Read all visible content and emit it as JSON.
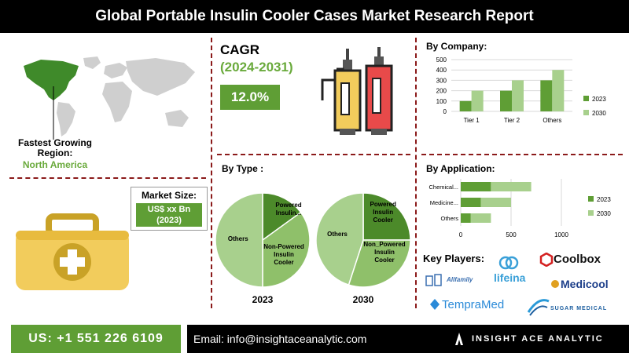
{
  "header": {
    "title": "Global Portable Insulin Cooler Cases Market Research Report"
  },
  "region": {
    "title": "Fastest Growing Region:",
    "value": "North America"
  },
  "market_size": {
    "title": "Market Size:",
    "value_line1": "US$ xx Bn",
    "value_line2": "(2023)"
  },
  "cagr": {
    "title": "CAGR",
    "period": "(2024-2031)",
    "value": "12.0%"
  },
  "by_type": {
    "title": "By Type :"
  },
  "by_company": {
    "title": "By Company:"
  },
  "by_application": {
    "title": "By Application:"
  },
  "key_players": {
    "title": "Key Players:",
    "logos": [
      "lifeina",
      "Coolbox",
      "Allfamily",
      "Medicool",
      "TempraMed",
      "SUGAR MEDICAL"
    ]
  },
  "footer": {
    "phone": "US: +1 551 226 6109",
    "email": "Email: info@insightaceanalytic.com",
    "brand": "INSIGHT ACE ANALYTIC"
  },
  "colors": {
    "dark_green": "#5f9e35",
    "mid_green": "#6aaa3c",
    "light_green": "#a8d08d",
    "pie_dark": "#4c8a2a",
    "pie_light": "#8fc06a"
  },
  "chart_data": [
    {
      "type": "pie",
      "title": "2023",
      "slices": [
        {
          "label": "Powered Insulin...",
          "value": 15
        },
        {
          "label": "Non-Powered Insulin Cooler",
          "value": 35
        },
        {
          "label": "Others",
          "value": 50
        }
      ]
    },
    {
      "type": "pie",
      "title": "2030",
      "slices": [
        {
          "label": "Powered Insulin Cooler",
          "value": 25
        },
        {
          "label": "Non_Powered Insulin Cooler",
          "value": 30
        },
        {
          "label": "Others",
          "value": 45
        }
      ]
    },
    {
      "type": "bar",
      "categories": [
        "Tier 1",
        "Tier 2",
        "Others"
      ],
      "series": [
        {
          "name": "2023",
          "values": [
            100,
            200,
            300
          ]
        },
        {
          "name": "2030",
          "values": [
            200,
            300,
            400
          ]
        }
      ],
      "ylim": [
        0,
        500
      ],
      "yticks": [
        0,
        100,
        200,
        300,
        400,
        500
      ],
      "legend": "right"
    },
    {
      "type": "bar",
      "orientation": "horizontal",
      "categories": [
        "Chemical...",
        "Medicine...",
        "Others"
      ],
      "series": [
        {
          "name": "2023",
          "values": [
            300,
            200,
            100
          ]
        },
        {
          "name": "2030",
          "values": [
            400,
            300,
            200
          ]
        }
      ],
      "xlim": [
        0,
        1000
      ],
      "xticks": [
        0,
        500,
        1000
      ],
      "legend": "right"
    }
  ]
}
